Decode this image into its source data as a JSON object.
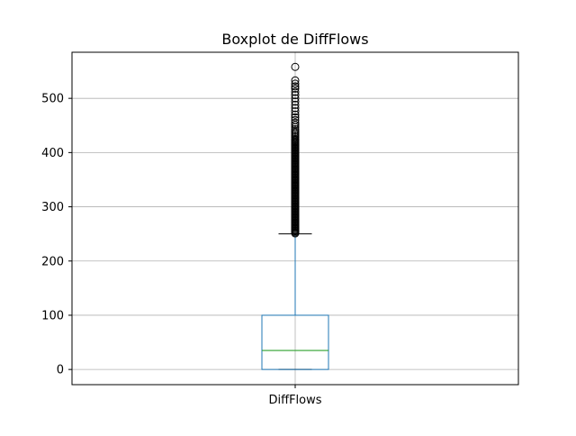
{
  "chart_data": {
    "type": "box",
    "title": "Boxplot de DiffFlows",
    "xlabel": "",
    "ylabel": "",
    "categories": [
      "DiffFlows"
    ],
    "ylim": [
      -28,
      585
    ],
    "yticks": [
      0,
      100,
      200,
      300,
      400,
      500
    ],
    "grid": true,
    "legend": "none",
    "box": {
      "whisker_low": 0,
      "q1": 0,
      "median": 35,
      "q3": 100,
      "whisker_high": 250
    },
    "outliers": [
      251,
      253,
      255,
      257,
      259,
      261,
      263,
      265,
      267,
      269,
      271,
      273,
      275,
      277,
      279,
      281,
      283,
      285,
      287,
      289,
      291,
      293,
      295,
      297,
      299,
      301,
      303,
      305,
      307,
      309,
      311,
      313,
      315,
      317,
      319,
      321,
      323,
      325,
      327,
      329,
      331,
      333,
      335,
      337,
      339,
      341,
      343,
      345,
      347,
      349,
      351,
      353,
      355,
      357,
      359,
      361,
      363,
      365,
      367,
      369,
      371,
      373,
      375,
      377,
      379,
      381,
      383,
      385,
      387,
      389,
      391,
      393,
      395,
      397,
      399,
      401,
      403,
      405,
      407,
      409,
      411,
      413,
      415,
      417,
      419,
      421,
      423,
      425,
      428,
      431,
      434,
      437,
      440,
      443,
      447,
      451,
      455,
      460,
      465,
      470,
      476,
      482,
      488,
      494,
      500,
      506,
      512,
      518,
      522,
      527,
      533,
      558
    ],
    "colors": {
      "box": "#1f77b4",
      "median": "#2ca02c",
      "whisker": "#1f77b4",
      "cap": "#000000",
      "outlier": "#000000",
      "grid": "#b0b0b0",
      "axis": "#000000"
    }
  }
}
